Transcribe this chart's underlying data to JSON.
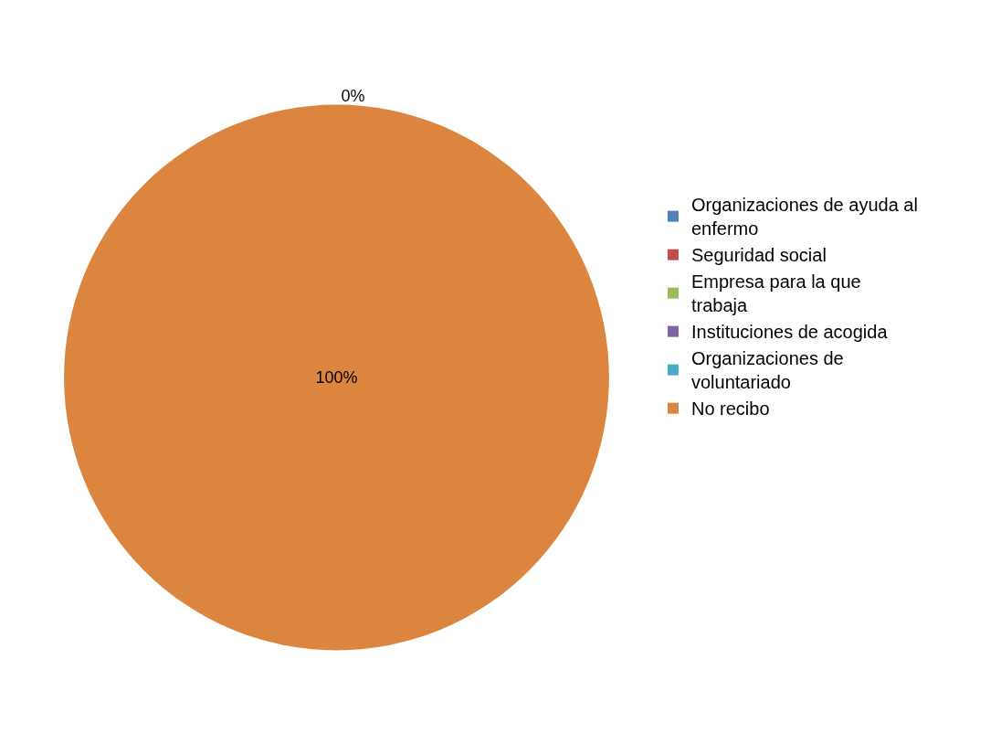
{
  "chart_data": {
    "type": "pie",
    "categories": [
      "Organizaciones de ayuda al enfermo",
      "Seguridad social",
      "Empresa para la que trabaja",
      "Instituciones de acogida",
      "Organizaciones de voluntariado",
      "No recibo"
    ],
    "values": [
      0,
      0,
      0,
      0,
      0,
      100
    ],
    "colors": [
      "#4f81bd",
      "#c0504d",
      "#9bbb59",
      "#8064a2",
      "#4bacc6",
      "#dc853e"
    ],
    "value_labels": [
      "0%",
      null,
      null,
      null,
      null,
      "100%"
    ],
    "legend": "right"
  }
}
